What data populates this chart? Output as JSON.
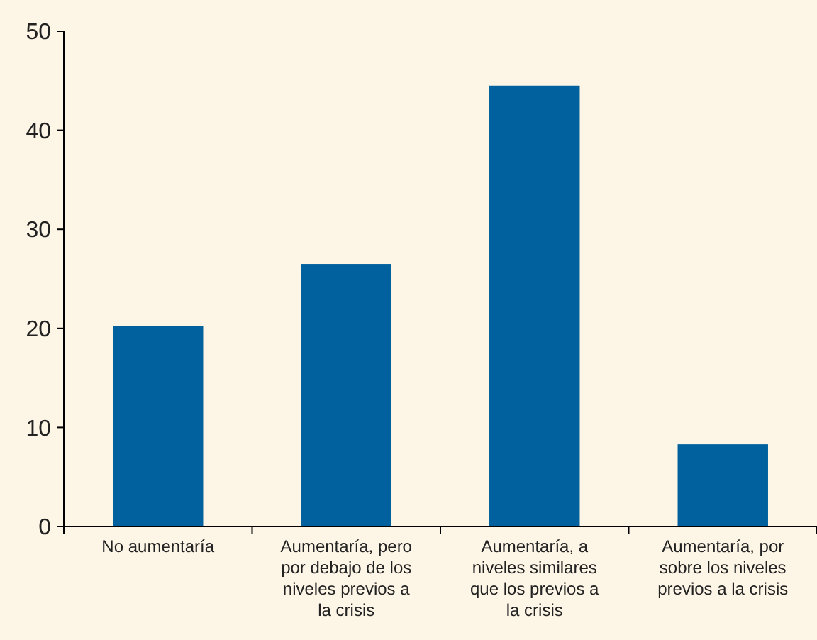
{
  "chart_data": {
    "type": "bar",
    "categories": [
      "No aumentaría",
      "Aumentaría, pero por debajo de los niveles previos a la crisis",
      "Aumentaría, a niveles similares que los previos a la crisis",
      "Aumentaría, por sobre los niveles previos a la crisis"
    ],
    "values": [
      20.2,
      26.5,
      44.5,
      8.3
    ],
    "color": "#00619e",
    "ylim": [
      0,
      50
    ],
    "yticks": [
      0,
      10,
      20,
      30,
      40,
      50
    ],
    "grid": false
  }
}
